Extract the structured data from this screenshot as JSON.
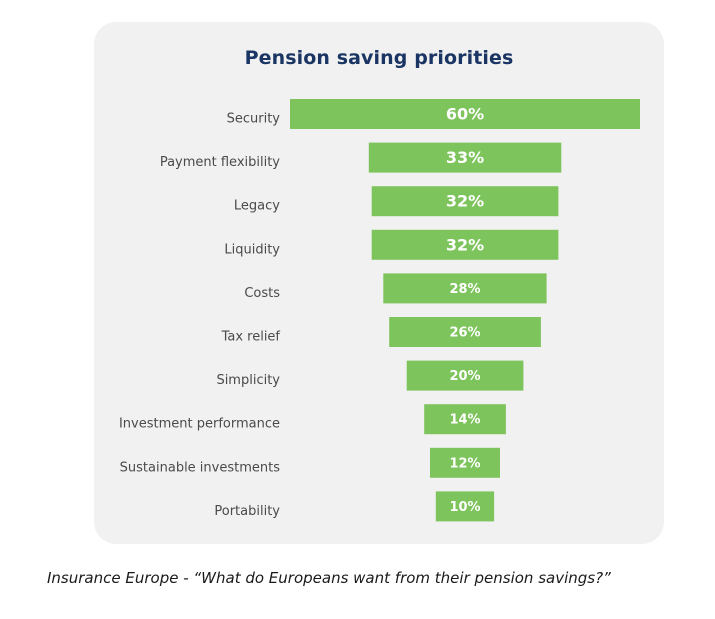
{
  "caption": "Insurance Europe - “What do Europeans want from their pension savings?”",
  "colors": {
    "bar": "#7ec45c",
    "card_background": "#f1f1f1",
    "title": "#1a3563"
  },
  "chart_data": {
    "type": "bar",
    "orientation": "horizontal-funnel",
    "title": "Pension saving priorities",
    "categories": [
      "Security",
      "Payment flexibility",
      "Legacy",
      "Liquidity",
      "Costs",
      "Tax relief",
      "Simplicity",
      "Investment performance",
      "Sustainable investments",
      "Portability"
    ],
    "values": [
      60,
      33,
      32,
      32,
      28,
      26,
      20,
      14,
      12,
      10
    ],
    "value_labels": [
      "60%",
      "33%",
      "32%",
      "32%",
      "28%",
      "26%",
      "20%",
      "14%",
      "12%",
      "10%"
    ],
    "unit": "%",
    "grid": false,
    "legend": "none"
  }
}
